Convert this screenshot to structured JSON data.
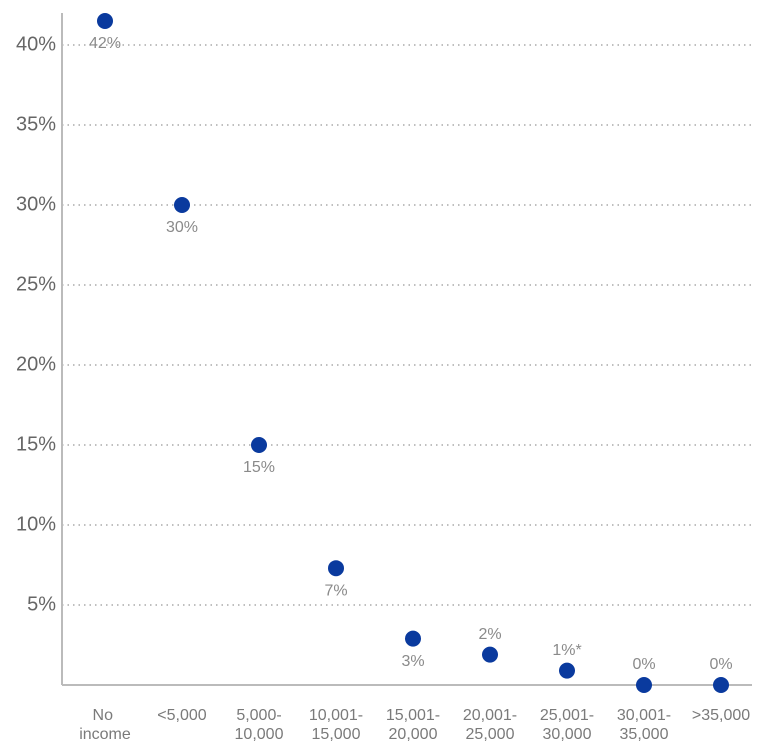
{
  "chart_data": {
    "type": "dot",
    "categories": [
      "No income",
      "<5,000",
      "5,000-10,000",
      "10,001-15,000",
      "15,001-20,000",
      "20,001-25,000",
      "25,001-30,000",
      "30,001-35,000",
      ">35,000"
    ],
    "values": [
      41.5,
      30,
      15,
      7.3,
      2.9,
      1.9,
      0.9,
      0,
      0
    ],
    "value_labels": [
      "42%",
      "30%",
      "15%",
      "7%",
      "3%",
      "2%",
      "1%*",
      "0%",
      "0%"
    ],
    "color": "#0a3a9e",
    "ylim": [
      0,
      42
    ],
    "yticks": [
      {
        "value": 5,
        "label": "5%"
      },
      {
        "value": 10,
        "label": "10%"
      },
      {
        "value": 15,
        "label": "15%"
      },
      {
        "value": 20,
        "label": "20%"
      },
      {
        "value": 25,
        "label": "25%"
      },
      {
        "value": 30,
        "label": "30%"
      },
      {
        "value": 35,
        "label": "35%"
      },
      {
        "value": 40,
        "label": "40%"
      }
    ],
    "grid": true
  }
}
